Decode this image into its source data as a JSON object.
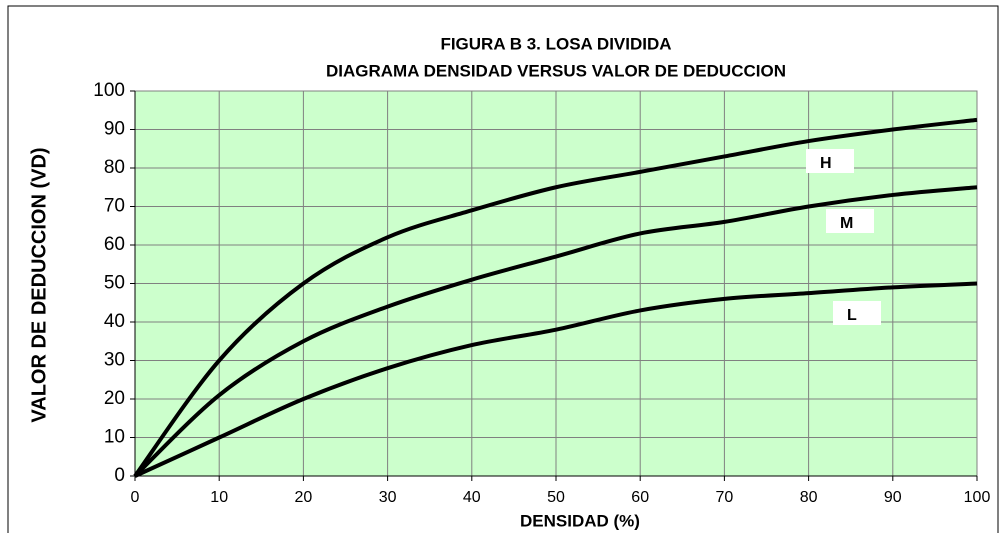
{
  "chart_data": {
    "type": "line",
    "title": "FIGURA B 3. LOSA DIVIDIDA",
    "subtitle": "DIAGRAMA DENSIDAD VERSUS VALOR DE DEDUCCION",
    "x_label": "DENSIDAD  (%)",
    "y_label": "VALOR DE DEDUCCION  (VD)",
    "x": [
      0,
      10,
      20,
      30,
      40,
      50,
      60,
      70,
      80,
      90,
      100
    ],
    "series": [
      {
        "name": "H",
        "color": "#000000",
        "values": [
          0,
          30,
          50,
          62,
          69,
          75,
          79,
          83,
          87,
          90,
          92.5
        ]
      },
      {
        "name": "M",
        "color": "#000000",
        "values": [
          0,
          21,
          35,
          44,
          51,
          57,
          63,
          66,
          70,
          73,
          75
        ]
      },
      {
        "name": "L",
        "color": "#000000",
        "values": [
          0,
          10,
          20,
          28,
          34,
          38,
          43,
          46,
          47.5,
          49,
          50
        ]
      }
    ],
    "xlim": [
      0,
      100
    ],
    "xticks": [
      0,
      10,
      20,
      30,
      40,
      50,
      60,
      70,
      80,
      90,
      100
    ],
    "ylim": [
      0,
      100
    ],
    "yticks": [
      0,
      10,
      20,
      30,
      40,
      50,
      60,
      70,
      80,
      90,
      100
    ],
    "grid": true,
    "plot_background": "#ccffcc"
  }
}
